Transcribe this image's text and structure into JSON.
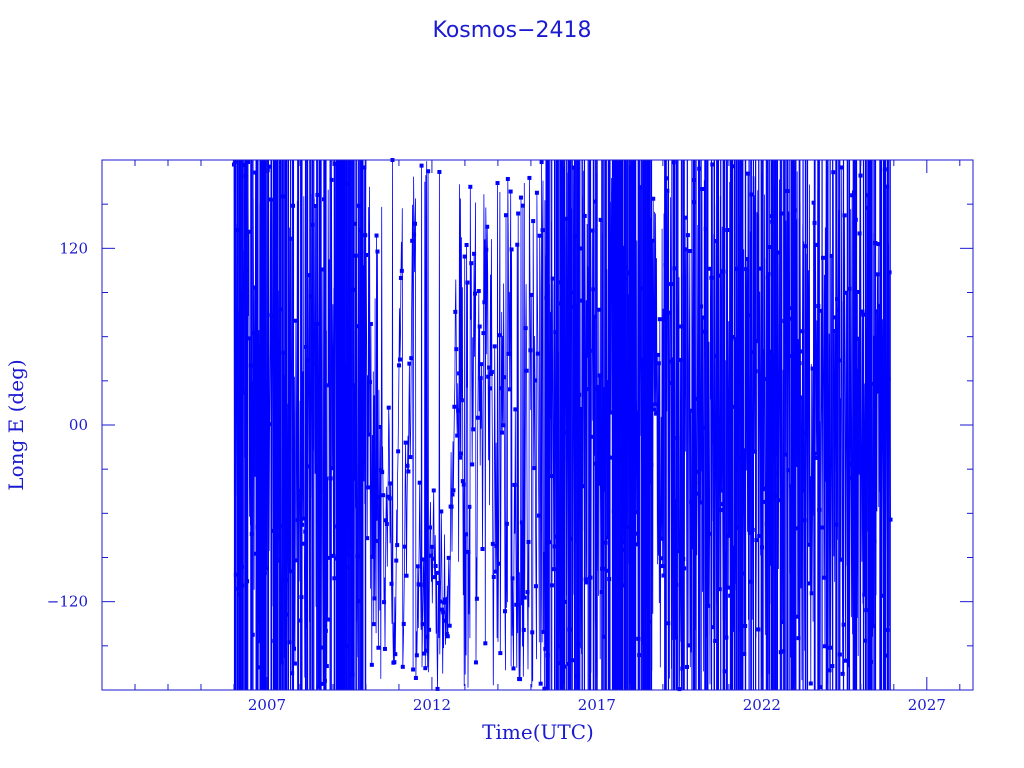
{
  "chart_data": {
    "type": "line",
    "title": "Kosmos−2418",
    "xlabel": "Time(UTC)",
    "ylabel": "Long E (deg)",
    "xlim": [
      2002.0,
      2028.4
    ],
    "ylim": [
      -180,
      180
    ],
    "x_ticks": [
      {
        "value": 2007,
        "label": "2007"
      },
      {
        "value": 2012,
        "label": "2012"
      },
      {
        "value": 2017,
        "label": "2017"
      },
      {
        "value": 2022,
        "label": "2022"
      },
      {
        "value": 2027,
        "label": "2027"
      }
    ],
    "x_minor_step": 1,
    "y_ticks": [
      {
        "value": -120,
        "label": "−120"
      },
      {
        "value": 0,
        "label": "00"
      },
      {
        "value": 120,
        "label": "120"
      }
    ],
    "y_minor_step": 30,
    "grid": false,
    "color": "#0000ff",
    "series": [
      {
        "x_range": [
          2006.0,
          2025.9
        ],
        "y_range": [
          -180,
          180
        ],
        "description_values": [
          {
            "x": 2006.0,
            "y": -180
          },
          {
            "x": 2006.0,
            "y": 180
          },
          {
            "x": 2010.5,
            "y": 135
          },
          {
            "x": 2010.5,
            "y": -50
          },
          {
            "x": 2012.8,
            "y": 120
          },
          {
            "x": 2012.8,
            "y": -180
          },
          {
            "x": 2018.7,
            "y": 180
          },
          {
            "x": 2018.7,
            "y": -180
          },
          {
            "x": 2025.9,
            "y": 180
          },
          {
            "x": 2025.9,
            "y": -180
          }
        ]
      }
    ]
  }
}
